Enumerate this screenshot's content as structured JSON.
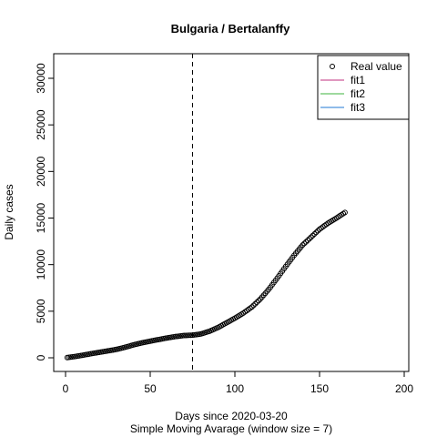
{
  "chart_data": {
    "type": "scatter",
    "title": "Bulgaria / Bertalanffy",
    "xlabel": "Days since 2020-03-20",
    "subtitle": "Simple Moving Avarage (window size = 7)",
    "ylabel": "Daily cases",
    "xlim": [
      0,
      200
    ],
    "ylim": [
      0,
      30000
    ],
    "x_ticks": [
      "0",
      "50",
      "100",
      "150",
      "200"
    ],
    "y_ticks": [
      "0",
      "5000",
      "10000",
      "15000",
      "20000",
      "25000",
      "30000"
    ],
    "vline_x": 75,
    "legend": {
      "position": "top-right",
      "entries": [
        {
          "label": "Real value",
          "kind": "point",
          "color": "#000000"
        },
        {
          "label": "fit1",
          "kind": "line",
          "color": "#c0307f"
        },
        {
          "label": "fit2",
          "kind": "line",
          "color": "#3cb33c"
        },
        {
          "label": "fit3",
          "kind": "line",
          "color": "#1f77d4"
        }
      ]
    },
    "series": [
      {
        "points": [
          [
            1,
            30
          ],
          [
            5,
            120
          ],
          [
            10,
            270
          ],
          [
            15,
            440
          ],
          [
            20,
            590
          ],
          [
            25,
            740
          ],
          [
            30,
            900
          ],
          [
            35,
            1120
          ],
          [
            40,
            1380
          ],
          [
            45,
            1600
          ],
          [
            50,
            1780
          ],
          [
            55,
            1960
          ],
          [
            60,
            2130
          ],
          [
            65,
            2280
          ],
          [
            70,
            2390
          ],
          [
            75,
            2430
          ],
          [
            80,
            2560
          ],
          [
            85,
            2850
          ],
          [
            90,
            3250
          ],
          [
            95,
            3750
          ],
          [
            100,
            4250
          ],
          [
            105,
            4800
          ],
          [
            110,
            5450
          ],
          [
            115,
            6300
          ],
          [
            120,
            7350
          ],
          [
            125,
            8550
          ],
          [
            130,
            9800
          ],
          [
            135,
            11000
          ],
          [
            140,
            12100
          ],
          [
            145,
            12950
          ],
          [
            150,
            13800
          ],
          [
            155,
            14450
          ],
          [
            160,
            15000
          ],
          [
            165,
            15600
          ]
        ]
      }
    ]
  }
}
